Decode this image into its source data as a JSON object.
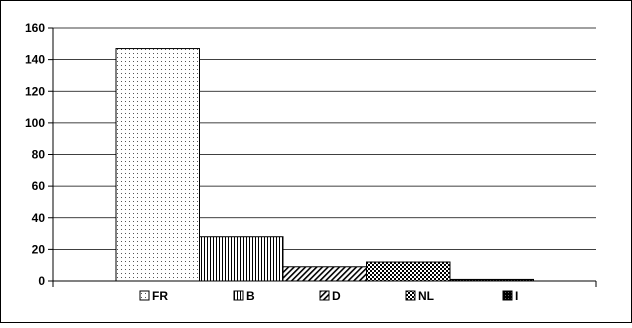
{
  "chart_data": {
    "type": "bar",
    "categories": [
      "FR",
      "B",
      "D",
      "NL",
      "I"
    ],
    "values": [
      147,
      28,
      9,
      12,
      1
    ],
    "ylim": [
      0,
      160
    ],
    "yticks": [
      0,
      20,
      40,
      60,
      80,
      100,
      120,
      140,
      160
    ],
    "grid": true,
    "legend": "bottom",
    "title": "",
    "xlabel": "",
    "ylabel": "",
    "series_patterns": [
      "dotted",
      "vertical-lines",
      "diagonal-lines",
      "checker",
      "dark-dense"
    ],
    "bar_color": "#000000",
    "background": "#ffffff"
  }
}
